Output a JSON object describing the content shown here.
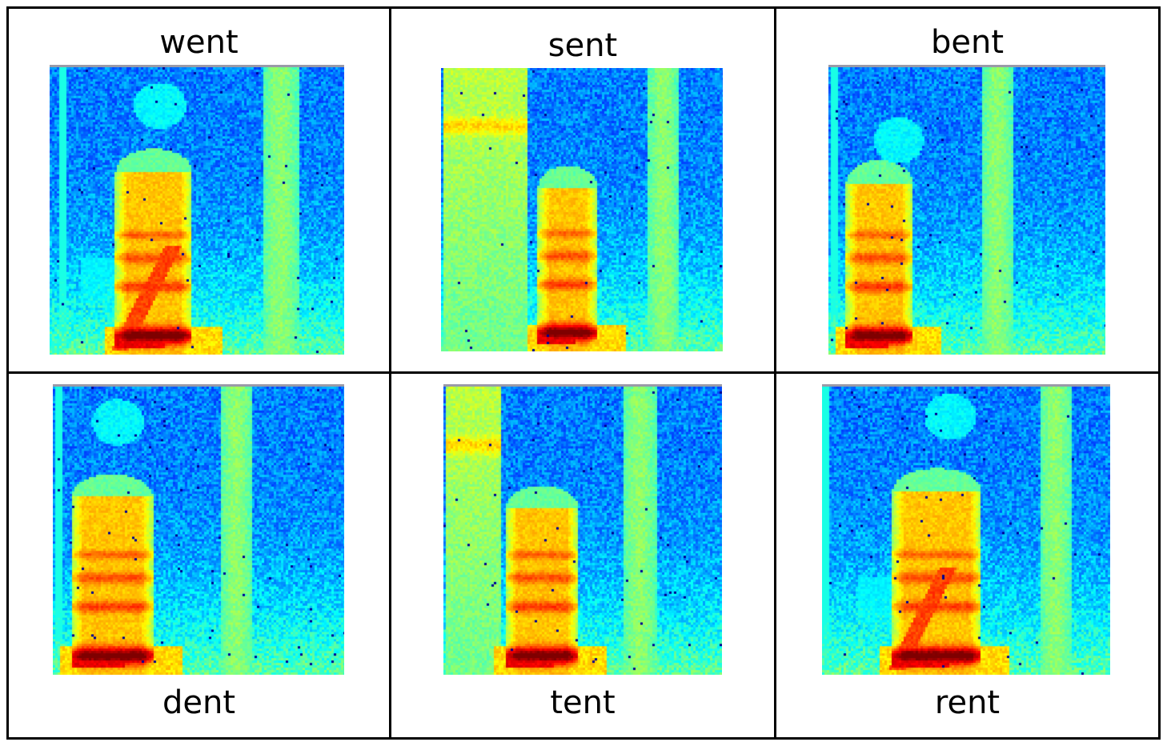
{
  "cells": [
    {
      "word": "went",
      "kind": "w"
    },
    {
      "word": "sent",
      "kind": "s"
    },
    {
      "word": "bent",
      "kind": "b"
    },
    {
      "word": "dent",
      "kind": "d"
    },
    {
      "word": "tent",
      "kind": "t"
    },
    {
      "word": "rent",
      "kind": "r"
    }
  ]
}
